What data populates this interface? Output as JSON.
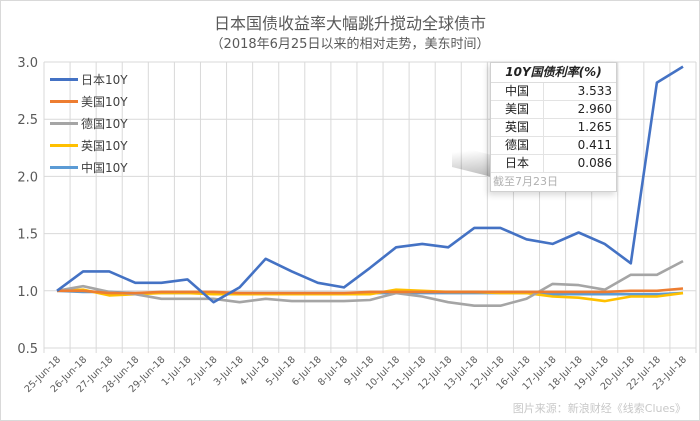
{
  "chart_data": {
    "type": "line",
    "title": "日本国债收益率大幅跳升搅动全球债市",
    "subtitle": "（2018年6月25日以来的相对走势，美东时间）",
    "xlabel": "",
    "ylabel": "",
    "ylim": [
      0.5,
      3.0
    ],
    "yticks": [
      "0.5",
      "1.0",
      "1.5",
      "2.0",
      "2.5",
      "3.0"
    ],
    "grid": true,
    "legend_position": "top-left",
    "categories": [
      "25-Jun-18",
      "26-Jun-18",
      "27-Jun-18",
      "28-Jun-18",
      "29-Jun-18",
      "1-Jul-18",
      "2-Jul-18",
      "3-Jul-18",
      "4-Jul-18",
      "5-Jul-18",
      "6-Jul-18",
      "8-Jul-18",
      "9-Jul-18",
      "10-Jul-18",
      "11-Jul-18",
      "12-Jul-18",
      "13-Jul-18",
      "12-Jul-18",
      "16-Jul-18",
      "17-Jul-18",
      "18-Jul-18",
      "19-Jul-18",
      "20-Jul-18",
      "22-Jul-18",
      "23-Jul-18"
    ],
    "series": [
      {
        "name": "日本10Y",
        "color": "#4472c4",
        "values": [
          1.0,
          1.17,
          1.17,
          1.07,
          1.07,
          1.1,
          0.9,
          1.03,
          1.28,
          1.17,
          1.07,
          1.03,
          1.2,
          1.38,
          1.41,
          1.38,
          1.55,
          1.55,
          1.45,
          1.41,
          1.51,
          1.41,
          1.24,
          2.82,
          2.96
        ]
      },
      {
        "name": "美国10Y",
        "color": "#ed7d31",
        "values": [
          1.0,
          1.0,
          0.98,
          0.98,
          0.99,
          0.99,
          0.99,
          0.98,
          0.98,
          0.98,
          0.98,
          0.98,
          0.99,
          0.99,
          0.99,
          0.99,
          0.99,
          0.99,
          0.99,
          0.99,
          0.99,
          0.99,
          1.0,
          1.0,
          1.02
        ]
      },
      {
        "name": "德国10Y",
        "color": "#a5a5a5",
        "values": [
          1.0,
          1.04,
          0.99,
          0.97,
          0.93,
          0.93,
          0.93,
          0.9,
          0.93,
          0.91,
          0.91,
          0.91,
          0.92,
          0.98,
          0.95,
          0.9,
          0.87,
          0.87,
          0.93,
          1.06,
          1.05,
          1.01,
          1.14,
          1.14,
          1.26
        ]
      },
      {
        "name": "英国10Y",
        "color": "#ffc000",
        "values": [
          1.0,
          1.01,
          0.96,
          0.97,
          0.98,
          0.98,
          0.97,
          0.97,
          0.97,
          0.97,
          0.97,
          0.97,
          0.97,
          1.01,
          1.0,
          0.99,
          0.99,
          0.98,
          0.98,
          0.95,
          0.94,
          0.91,
          0.95,
          0.95,
          0.98
        ]
      },
      {
        "name": "中国10Y",
        "color": "#5b9bd5",
        "values": [
          1.0,
          0.99,
          0.99,
          0.98,
          0.98,
          0.98,
          0.98,
          0.98,
          0.98,
          0.98,
          0.98,
          0.98,
          0.98,
          0.98,
          0.98,
          0.98,
          0.98,
          0.98,
          0.98,
          0.97,
          0.97,
          0.97,
          0.97,
          0.97,
          0.98
        ]
      }
    ]
  },
  "title": "日本国债收益率大幅跳升搅动全球债市",
  "subtitle": "（2018年6月25日以来的相对走势，美东时间）",
  "legend": [
    {
      "label": "日本10Y",
      "color": "#4472c4"
    },
    {
      "label": "美国10Y",
      "color": "#ed7d31"
    },
    {
      "label": "德国10Y",
      "color": "#a5a5a5"
    },
    {
      "label": "英国10Y",
      "color": "#ffc000"
    },
    {
      "label": "中国10Y",
      "color": "#5b9bd5"
    }
  ],
  "table": {
    "header": "10Y国债利率(%)",
    "rows": [
      {
        "country": "中国",
        "value": "3.533"
      },
      {
        "country": "美国",
        "value": "2.960"
      },
      {
        "country": "英国",
        "value": "1.265"
      },
      {
        "country": "德国",
        "value": "0.411"
      },
      {
        "country": "日本",
        "value": "0.086"
      }
    ],
    "footnote": "截至7月23日"
  },
  "source": "图片来源：新浪财经《线索Clues》"
}
